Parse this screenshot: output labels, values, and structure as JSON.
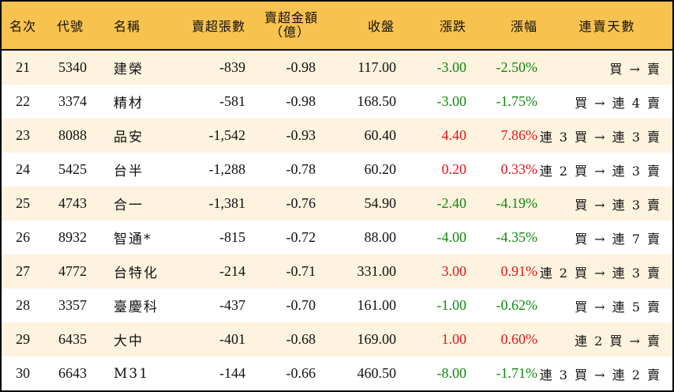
{
  "header": {
    "rank": "名次",
    "code": "代號",
    "name": "名稱",
    "net_sell_lots": "賣超張數",
    "net_sell_amount_line1": "賣超金額",
    "net_sell_amount_line2": "（億）",
    "close": "收盤",
    "change": "漲跌",
    "change_pct": "漲幅",
    "streak": "連賣天數"
  },
  "colors": {
    "header_bg": "#F8C24E",
    "alt_row_bg": "#FDF3DE",
    "up": "#E8141B",
    "down": "#0F8A0F",
    "border": "#000000"
  },
  "rows": [
    {
      "rank": "21",
      "code": "5340",
      "name": "建榮",
      "lots": "-839",
      "amount": "-0.98",
      "close": "117.00",
      "change": "-3.00",
      "pct": "-2.50%",
      "dir": "down",
      "streak": "買 → 賣"
    },
    {
      "rank": "22",
      "code": "3374",
      "name": "精材",
      "lots": "-581",
      "amount": "-0.98",
      "close": "168.50",
      "change": "-3.00",
      "pct": "-1.75%",
      "dir": "down",
      "streak": "買 → 連 4 賣"
    },
    {
      "rank": "23",
      "code": "8088",
      "name": "品安",
      "lots": "-1,542",
      "amount": "-0.93",
      "close": "60.40",
      "change": "4.40",
      "pct": "7.86%",
      "dir": "up",
      "streak": "連 3 買 → 連 3 賣"
    },
    {
      "rank": "24",
      "code": "5425",
      "name": "台半",
      "lots": "-1,288",
      "amount": "-0.78",
      "close": "60.20",
      "change": "0.20",
      "pct": "0.33%",
      "dir": "up",
      "streak": "連 2 買 → 連 3 賣"
    },
    {
      "rank": "25",
      "code": "4743",
      "name": "合一",
      "lots": "-1,381",
      "amount": "-0.76",
      "close": "54.90",
      "change": "-2.40",
      "pct": "-4.19%",
      "dir": "down",
      "streak": "買 → 連 3 賣"
    },
    {
      "rank": "26",
      "code": "8932",
      "name": "智通*",
      "lots": "-815",
      "amount": "-0.72",
      "close": "88.00",
      "change": "-4.00",
      "pct": "-4.35%",
      "dir": "down",
      "streak": "買 → 連 7 賣"
    },
    {
      "rank": "27",
      "code": "4772",
      "name": "台特化",
      "lots": "-214",
      "amount": "-0.71",
      "close": "331.00",
      "change": "3.00",
      "pct": "0.91%",
      "dir": "up",
      "streak": "連 2 買 → 連 3 賣"
    },
    {
      "rank": "28",
      "code": "3357",
      "name": "臺慶科",
      "lots": "-437",
      "amount": "-0.70",
      "close": "161.00",
      "change": "-1.00",
      "pct": "-0.62%",
      "dir": "down",
      "streak": "買 → 連 5 賣"
    },
    {
      "rank": "29",
      "code": "6435",
      "name": "大中",
      "lots": "-401",
      "amount": "-0.68",
      "close": "169.00",
      "change": "1.00",
      "pct": "0.60%",
      "dir": "up",
      "streak": "連 2 買 → 賣"
    },
    {
      "rank": "30",
      "code": "6643",
      "name": "M31",
      "lots": "-144",
      "amount": "-0.66",
      "close": "460.50",
      "change": "-8.00",
      "pct": "-1.71%",
      "dir": "down",
      "streak": "連 3 買 → 連 2 賣"
    }
  ]
}
